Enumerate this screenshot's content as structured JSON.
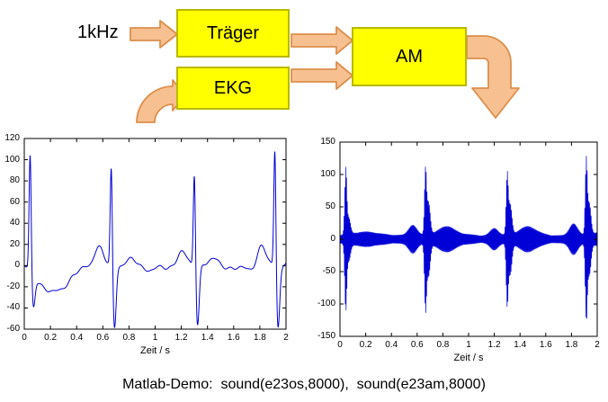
{
  "diagram": {
    "input_label": "1kHz",
    "blocks": {
      "traeger": "Träger",
      "ekg": "EKG",
      "am": "AM"
    },
    "colors": {
      "box_fill": "#ffff00",
      "box_border": "#b9b900",
      "arrow_fill": "#f7c091",
      "arrow_border": "#db8f4b"
    }
  },
  "caption": "Matlab-Demo:  sound(e23os,8000),  sound(e23am,8000)",
  "chart_data": [
    {
      "type": "line",
      "name": "ekg-signal",
      "title": "",
      "xlabel": "Zeit / s",
      "ylabel": "",
      "xlim": [
        0,
        2
      ],
      "ylim": [
        -60,
        120
      ],
      "xticks": [
        0,
        0.2,
        0.4,
        0.6,
        0.8,
        1,
        1.2,
        1.4,
        1.6,
        1.8,
        2
      ],
      "yticks": [
        -60,
        -40,
        -20,
        0,
        20,
        40,
        60,
        80,
        100,
        120
      ],
      "line_color": "#0000d6",
      "grid": false,
      "legend": null,
      "beats": [
        {
          "t": 0.045,
          "p": 0,
          "r": 113,
          "s": -30,
          "tw": 0,
          "rec": -24
        },
        {
          "t": 0.665,
          "p": 17,
          "r": 99,
          "s": -60,
          "tw": 9,
          "rec": -4
        },
        {
          "t": 1.3,
          "p": 13,
          "r": 95,
          "s": -56,
          "tw": 8,
          "rec": -4
        },
        {
          "t": 1.915,
          "p": 19,
          "r": 118,
          "s": -58,
          "tw": 4,
          "rec": -2
        }
      ],
      "description": "EKG baseband signal, 4 heartbeats over 2 s, R-peaks ~95-120, S-dips ~-60"
    },
    {
      "type": "line",
      "name": "am-signal",
      "title": "",
      "xlabel": "Zeit / s",
      "ylabel": "",
      "xlim": [
        0,
        2
      ],
      "ylim": [
        -150,
        150
      ],
      "xticks": [
        0,
        0.2,
        0.4,
        0.6,
        0.8,
        1,
        1.2,
        1.4,
        1.6,
        1.8,
        2
      ],
      "yticks": [
        -150,
        -100,
        -50,
        0,
        50,
        100,
        150
      ],
      "line_color": "#0000d6",
      "grid": false,
      "legend": null,
      "baseline_amplitude": 4,
      "beats": [
        {
          "t": 0.045,
          "p": 0,
          "r": 100,
          "s": 25,
          "tw": 0,
          "rec": 6
        },
        {
          "t": 0.665,
          "p": 16,
          "r": 98,
          "s": 50,
          "tw": 10,
          "rec": 5
        },
        {
          "t": 1.3,
          "p": 12,
          "r": 90,
          "s": 46,
          "tw": 9,
          "rec": 5
        },
        {
          "t": 1.915,
          "p": 18,
          "r": 113,
          "s": 48,
          "tw": 5,
          "rec": 4
        }
      ],
      "description": "AM-modulated EKG on 1 kHz carrier, symmetric envelope bursts ~±90-115 at beat times"
    }
  ]
}
